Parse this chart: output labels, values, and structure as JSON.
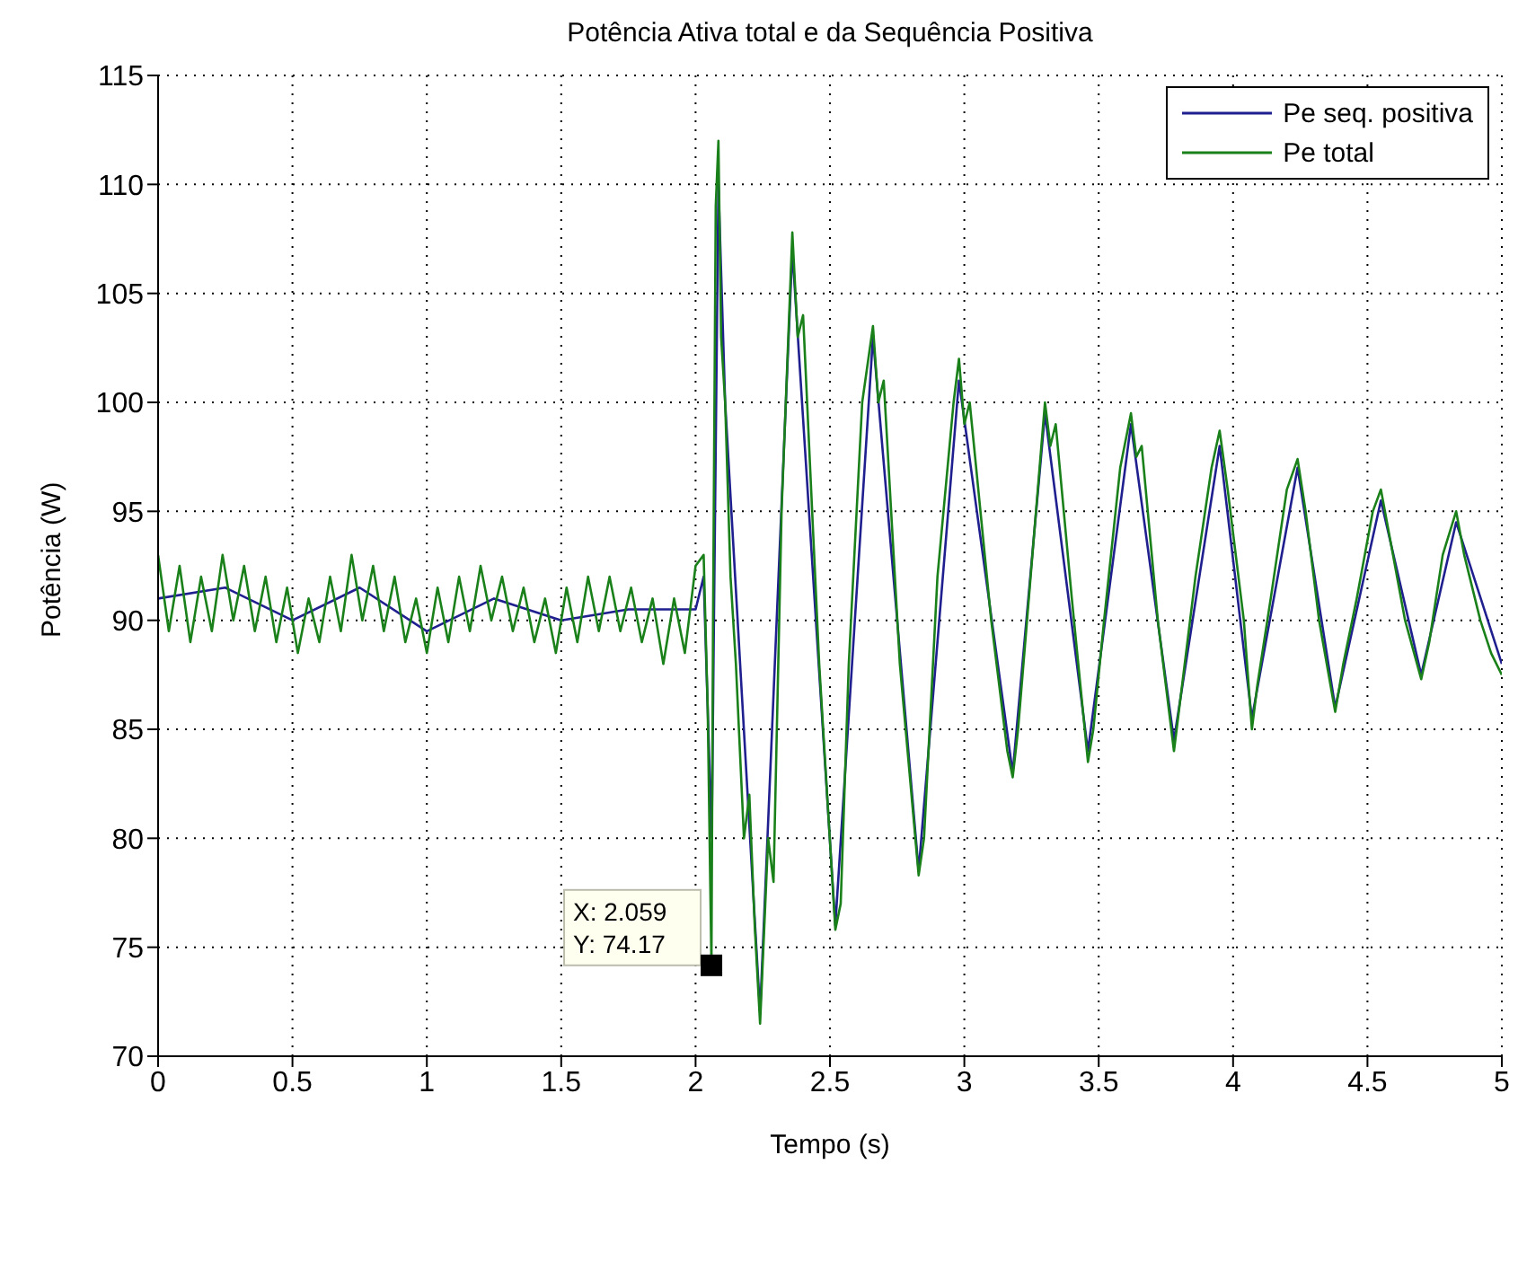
{
  "chart_data": {
    "type": "line",
    "title": "Potência Ativa total e da Sequência Positiva",
    "xlabel": "Tempo (s)",
    "ylabel": "Potência (W)",
    "xlim": [
      0,
      5
    ],
    "xticks": [
      0,
      0.5,
      1,
      1.5,
      2,
      2.5,
      3,
      3.5,
      4,
      4.5,
      5
    ],
    "ylim": [
      70,
      115
    ],
    "yticks": [
      70,
      75,
      80,
      85,
      90,
      95,
      100,
      105,
      110,
      115
    ],
    "grid": true,
    "legend": "top right",
    "line_style": "solid",
    "marker": "none",
    "annotations": [
      {
        "text": "X: 2.059\nY: 74.17",
        "x": 2.059,
        "y": 74.17
      }
    ],
    "series": [
      {
        "name": "Pe seq. positiva",
        "color": "#1f1f8f",
        "x": [
          0,
          0.25,
          0.5,
          0.75,
          1,
          1.25,
          1.5,
          1.75,
          2,
          2.03,
          2.04,
          2.06,
          2.085,
          2.11,
          2.24,
          2.36,
          2.52,
          2.66,
          2.83,
          2.98,
          3.18,
          3.3,
          3.46,
          3.62,
          3.78,
          3.95,
          4.07,
          4.24,
          4.38,
          4.55,
          4.7,
          4.83,
          5
        ],
        "values": [
          91,
          91.5,
          90,
          91.5,
          89.5,
          91,
          90,
          90.5,
          90.5,
          92,
          88,
          80,
          110,
          100,
          72,
          107,
          76,
          103,
          78.5,
          101,
          83,
          99.5,
          84,
          99,
          84.5,
          98,
          85.5,
          97,
          86,
          95.5,
          87.5,
          94.5,
          88
        ]
      },
      {
        "name": "Pe total",
        "color": "#1a801a",
        "x": [
          0,
          0.04,
          0.08,
          0.12,
          0.16,
          0.2,
          0.24,
          0.28,
          0.32,
          0.36,
          0.4,
          0.44,
          0.48,
          0.52,
          0.56,
          0.6,
          0.64,
          0.68,
          0.72,
          0.76,
          0.8,
          0.84,
          0.88,
          0.92,
          0.96,
          1,
          1.04,
          1.08,
          1.12,
          1.16,
          1.2,
          1.24,
          1.28,
          1.32,
          1.36,
          1.4,
          1.44,
          1.48,
          1.52,
          1.56,
          1.6,
          1.64,
          1.68,
          1.72,
          1.76,
          1.8,
          1.84,
          1.88,
          1.92,
          1.96,
          2,
          2.03,
          2.045,
          2.059,
          2.065,
          2.075,
          2.085,
          2.095,
          2.11,
          2.13,
          2.15,
          2.18,
          2.2,
          2.22,
          2.24,
          2.27,
          2.29,
          2.32,
          2.36,
          2.38,
          2.4,
          2.46,
          2.52,
          2.54,
          2.57,
          2.62,
          2.66,
          2.68,
          2.7,
          2.76,
          2.83,
          2.85,
          2.9,
          2.96,
          2.98,
          3,
          3.02,
          3.1,
          3.16,
          3.18,
          3.2,
          3.26,
          3.3,
          3.32,
          3.34,
          3.4,
          3.46,
          3.48,
          3.52,
          3.58,
          3.62,
          3.64,
          3.66,
          3.72,
          3.78,
          3.8,
          3.86,
          3.92,
          3.95,
          3.98,
          4.04,
          4.07,
          4.09,
          4.14,
          4.2,
          4.24,
          4.27,
          4.32,
          4.38,
          4.41,
          4.46,
          4.52,
          4.55,
          4.58,
          4.64,
          4.7,
          4.73,
          4.78,
          4.83,
          4.86,
          4.92,
          4.96,
          5
        ],
        "values": [
          93,
          89.5,
          92.5,
          89,
          92,
          89.5,
          93,
          90,
          92.5,
          89.5,
          92,
          89,
          91.5,
          88.5,
          91,
          89,
          92,
          89.5,
          93,
          90,
          92.5,
          89.5,
          92,
          89,
          91,
          88.5,
          91.5,
          89,
          92,
          89.5,
          92.5,
          90,
          92,
          89.5,
          91.5,
          89,
          91,
          88.5,
          91.5,
          89,
          92,
          89.5,
          92,
          89.5,
          91.5,
          89,
          91,
          88,
          91,
          88.5,
          92.5,
          93,
          86,
          74.2,
          90,
          109,
          112,
          103,
          100,
          92,
          88,
          80,
          82,
          76,
          71.5,
          80,
          78,
          95,
          107.8,
          103,
          104,
          88,
          75.8,
          77,
          88,
          100,
          103.5,
          100,
          101,
          88,
          78.3,
          80,
          92,
          100,
          102,
          99,
          100,
          90,
          84,
          82.8,
          85,
          94,
          100,
          98,
          99,
          91,
          83.5,
          85,
          90,
          97,
          99.5,
          97.5,
          98,
          90,
          84,
          86,
          92,
          97,
          98.7,
          96,
          90,
          85,
          87,
          91,
          96,
          97.4,
          95,
          90,
          85.8,
          88,
          91,
          95,
          96,
          94,
          90,
          87.3,
          89,
          93,
          95,
          93,
          90,
          88.5,
          87.5
        ]
      }
    ]
  }
}
